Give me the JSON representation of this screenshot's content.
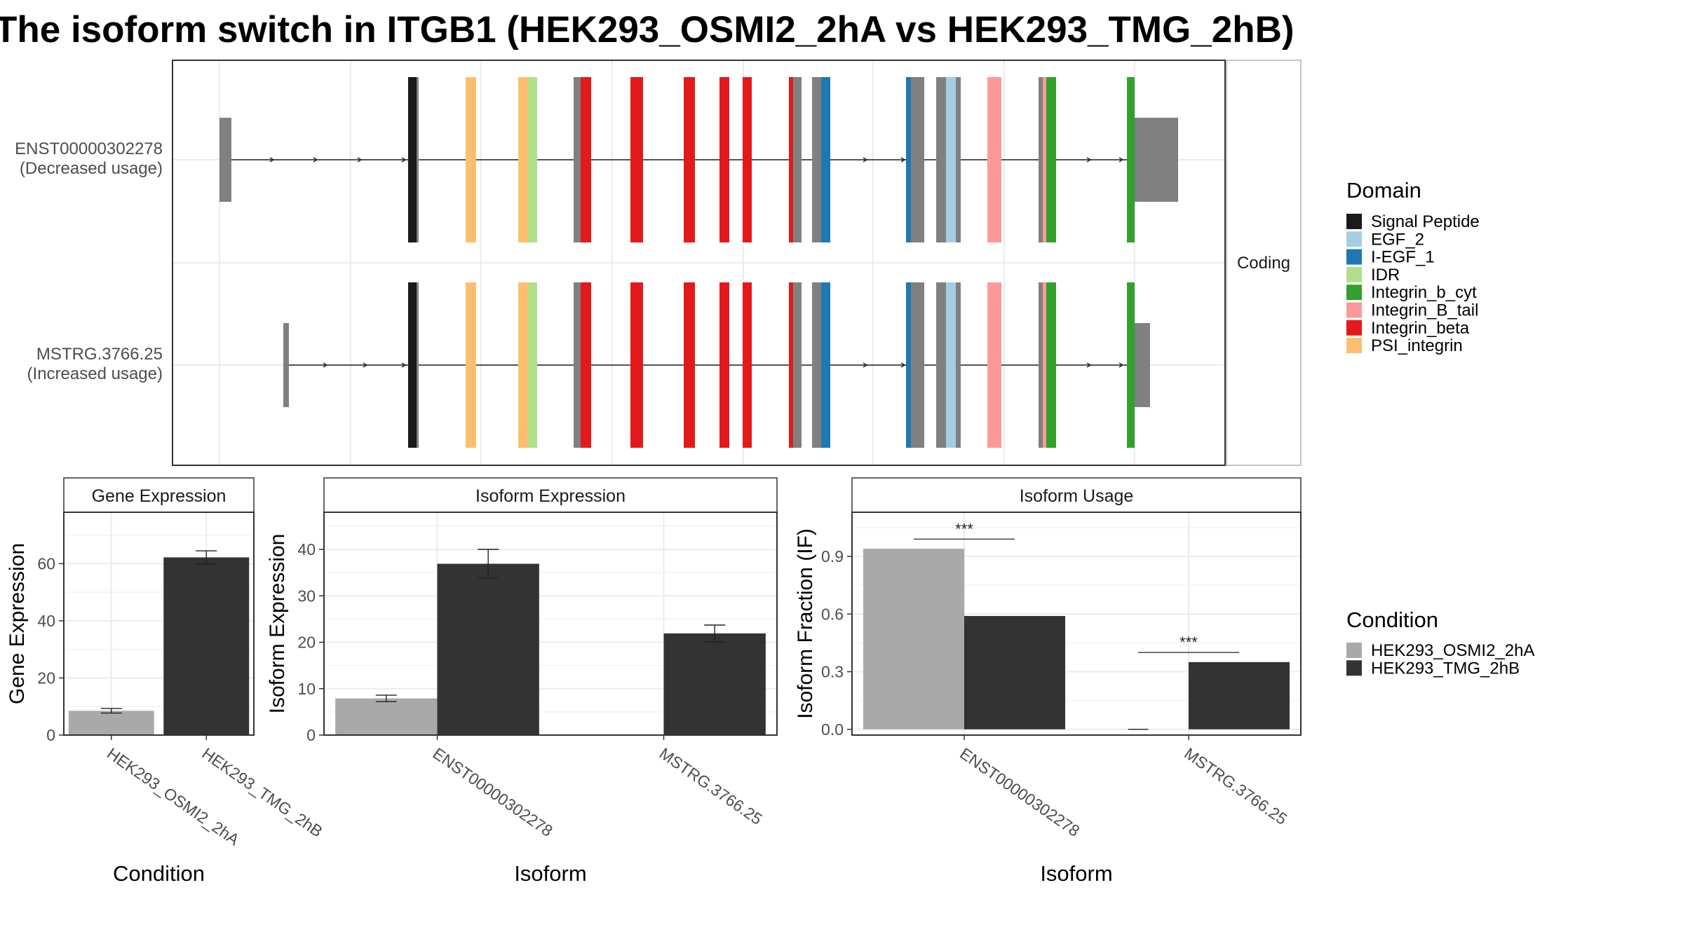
{
  "title": "The isoform switch in ITGB1 (HEK293_OSMI2_2hA vs HEK293_TMG_2hB)",
  "colors": {
    "cond_a": "#a9a9a9",
    "cond_b": "#333333",
    "exon": "#808080"
  },
  "chart_data": [
    {
      "type": "gene-structure",
      "facet_label": "Coding",
      "transcripts": [
        {
          "id": "ENST00000302278",
          "note": "(Decreased usage)"
        },
        {
          "id": "MSTRG.3766.25",
          "note": "(Increased usage)"
        }
      ],
      "legend": {
        "title": "Domain",
        "items": [
          {
            "label": "Signal Peptide",
            "color": "#1a1a1a"
          },
          {
            "label": "EGF_2",
            "color": "#a6cee3"
          },
          {
            "label": "I-EGF_1",
            "color": "#1f78b4"
          },
          {
            "label": "IDR",
            "color": "#b2df8a"
          },
          {
            "label": "Integrin_b_cyt",
            "color": "#33a02c"
          },
          {
            "label": "Integrin_B_tail",
            "color": "#fb9a99"
          },
          {
            "label": "Integrin_beta",
            "color": "#e31a1c"
          },
          {
            "label": "PSI_integrin",
            "color": "#fdbf6f"
          }
        ]
      }
    },
    {
      "type": "bar",
      "facet_label": "Gene Expression",
      "xlabel": "Condition",
      "ylabel": "Gene Expression",
      "ylim": [
        0,
        78
      ],
      "yticks": [
        0,
        20,
        40,
        60
      ],
      "categories": [
        "HEK293_OSMI2_2hA",
        "HEK293_TMG_2hB"
      ],
      "values": [
        8.5,
        62.2
      ],
      "errors": [
        0.8,
        2.3
      ]
    },
    {
      "type": "bar",
      "facet_label": "Isoform Expression",
      "xlabel": "Isoform",
      "ylabel": "Isoform Expression",
      "ylim": [
        0,
        48
      ],
      "yticks": [
        0,
        10,
        20,
        30,
        40
      ],
      "categories": [
        "ENST00000302278",
        "MSTRG.3766.25"
      ],
      "series": [
        {
          "name": "HEK293_OSMI2_2hA",
          "values": [
            7.9,
            0
          ],
          "errors": [
            0.7,
            0
          ]
        },
        {
          "name": "HEK293_TMG_2hB",
          "values": [
            36.9,
            21.9
          ],
          "errors": [
            3.1,
            1.8
          ]
        }
      ]
    },
    {
      "type": "bar",
      "facet_label": "Isoform Usage",
      "xlabel": "Isoform",
      "ylabel": "Isoform Fraction (IF)",
      "ylim": [
        -0.03,
        1.13
      ],
      "yticks": [
        "0.0",
        "0.3",
        "0.6",
        "0.9"
      ],
      "categories": [
        "ENST00000302278",
        "MSTRG.3766.25"
      ],
      "series": [
        {
          "name": "HEK293_OSMI2_2hA",
          "values": [
            0.94,
            0
          ]
        },
        {
          "name": "HEK293_TMG_2hB",
          "values": [
            0.59,
            0.35
          ]
        }
      ],
      "significance": [
        "***",
        "***"
      ]
    },
    {
      "type": "legend",
      "title": "Condition",
      "items": [
        {
          "label": "HEK293_OSMI2_2hA",
          "color": "#a9a9a9"
        },
        {
          "label": "HEK293_TMG_2hB",
          "color": "#333333"
        }
      ]
    }
  ]
}
